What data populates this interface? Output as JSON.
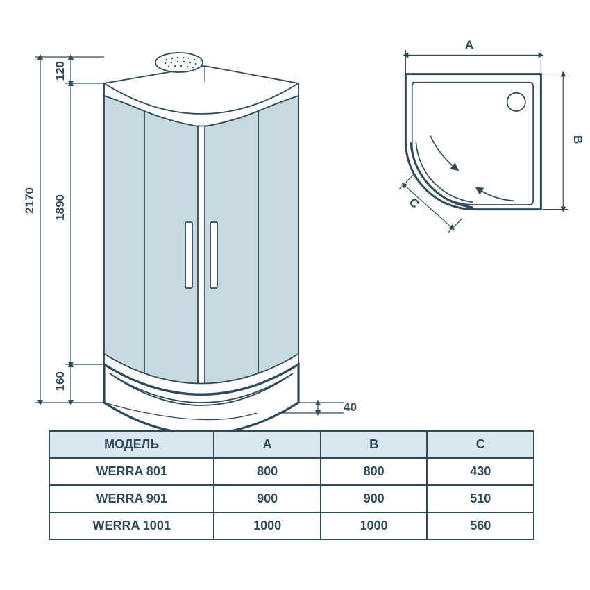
{
  "colors": {
    "ink": "#2e4a5a",
    "glass": "#c6d9df",
    "header_bg": "#d9e7ee",
    "background": "#ffffff"
  },
  "typography": {
    "font_family": "Arial",
    "dim_label_fontsize": 17,
    "table_fontsize": 18,
    "weight": 600
  },
  "elevation": {
    "dims": {
      "total_height": "2170",
      "enclosure_height": "1890",
      "top_gap": "120",
      "tray_height": "160",
      "tray_lip": "40"
    }
  },
  "plan": {
    "labels": {
      "A": "A",
      "B": "B",
      "C": "C"
    }
  },
  "table": {
    "columns": [
      "МОДЕЛЬ",
      "A",
      "B",
      "C"
    ],
    "rows": [
      {
        "model": "WERRA 801",
        "A": "800",
        "B": "800",
        "C": "430"
      },
      {
        "model": "WERRA 901",
        "A": "900",
        "B": "900",
        "C": "510"
      },
      {
        "model": "WERRA 1001",
        "A": "1000",
        "B": "1000",
        "C": "560"
      }
    ]
  }
}
